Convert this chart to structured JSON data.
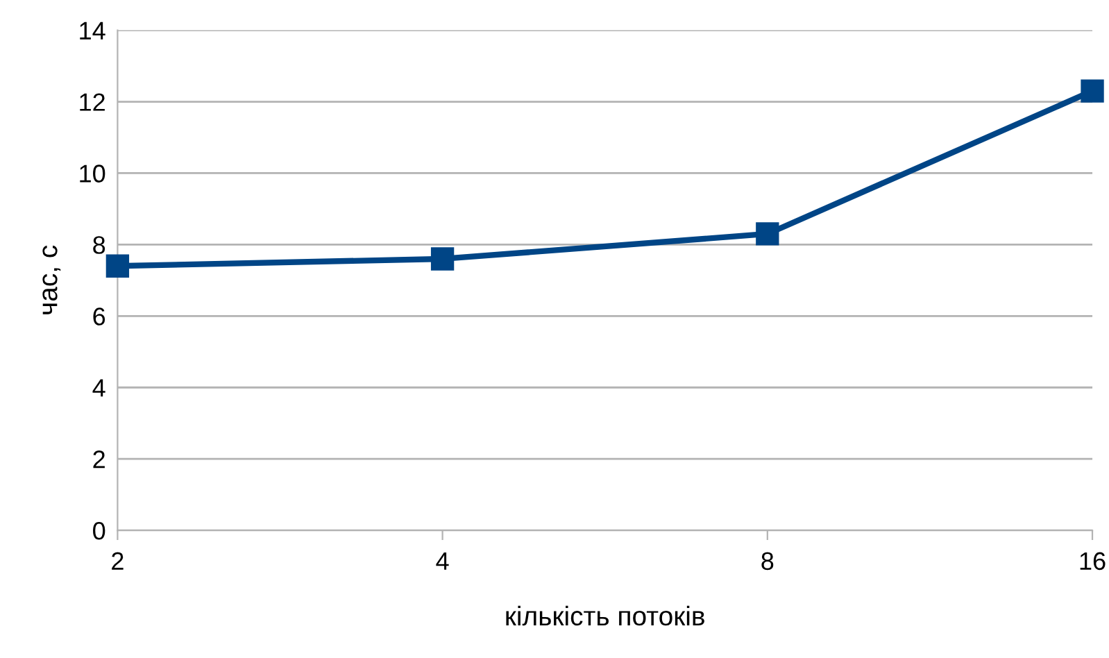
{
  "chart_data": {
    "type": "line",
    "xlabel": "кількість потоків",
    "ylabel": "час, с",
    "categories": [
      "2",
      "4",
      "8",
      "16"
    ],
    "series": [
      {
        "color": "#004586",
        "values": [
          7.4,
          7.6,
          8.3,
          12.3
        ]
      }
    ],
    "ylim": [
      0,
      14
    ],
    "yticks": [
      0,
      2,
      4,
      6,
      8,
      10,
      12,
      14
    ],
    "grid": "y",
    "marker": "square",
    "line_style": "solid",
    "legend": false
  }
}
